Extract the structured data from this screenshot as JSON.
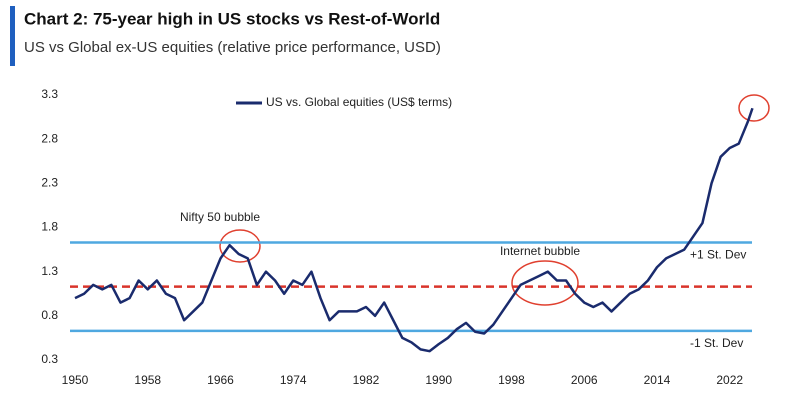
{
  "chart_data": {
    "type": "line",
    "title": "Chart 2: 75-year high in US stocks vs Rest-of-World",
    "subtitle": "US vs Global ex-US equities (relative price performance, USD)",
    "x": [
      1950,
      1951,
      1952,
      1953,
      1954,
      1955,
      1956,
      1957,
      1958,
      1959,
      1960,
      1961,
      1962,
      1963,
      1964,
      1965,
      1966,
      1967,
      1968,
      1969,
      1970,
      1971,
      1972,
      1973,
      1974,
      1975,
      1976,
      1977,
      1978,
      1979,
      1980,
      1981,
      1982,
      1983,
      1984,
      1985,
      1986,
      1987,
      1988,
      1989,
      1990,
      1991,
      1992,
      1993,
      1994,
      1995,
      1996,
      1997,
      1998,
      1999,
      2000,
      2001,
      2002,
      2003,
      2004,
      2005,
      2006,
      2007,
      2008,
      2009,
      2010,
      2011,
      2012,
      2013,
      2014,
      2015,
      2016,
      2017,
      2018,
      2019,
      2020,
      2021,
      2022,
      2023,
      2024,
      2024.5
    ],
    "series": [
      {
        "name": "US vs. Global equities (US$ terms)",
        "color": "#1a2b6d",
        "values": [
          1.0,
          1.05,
          1.15,
          1.1,
          1.15,
          0.95,
          1.0,
          1.2,
          1.1,
          1.2,
          1.05,
          1.0,
          0.75,
          0.85,
          0.95,
          1.2,
          1.45,
          1.6,
          1.5,
          1.45,
          1.15,
          1.3,
          1.2,
          1.05,
          1.2,
          1.15,
          1.3,
          1.0,
          0.75,
          0.85,
          0.85,
          0.85,
          0.9,
          0.8,
          0.95,
          0.75,
          0.55,
          0.5,
          0.42,
          0.4,
          0.48,
          0.55,
          0.65,
          0.72,
          0.62,
          0.6,
          0.7,
          0.85,
          1.0,
          1.15,
          1.2,
          1.25,
          1.3,
          1.2,
          1.2,
          1.05,
          0.95,
          0.9,
          0.95,
          0.85,
          0.95,
          1.05,
          1.1,
          1.2,
          1.35,
          1.45,
          1.5,
          1.55,
          1.7,
          1.85,
          2.3,
          2.6,
          2.7,
          2.75,
          3.0,
          3.15
        ]
      }
    ],
    "reference_lines": [
      {
        "label": "+1 St. Dev",
        "value": 1.63,
        "color": "#4fa8e0"
      },
      {
        "value": 1.13,
        "color": "#d9342b",
        "dashed": true
      },
      {
        "label": "-1 St. Dev",
        "value": 0.63,
        "color": "#4fa8e0"
      }
    ],
    "annotations": [
      "Nifty 50 bubble",
      "Internet bubble"
    ],
    "xlim": [
      1950,
      2025
    ],
    "xticks": [
      1950,
      1958,
      1966,
      1974,
      1982,
      1990,
      1998,
      2006,
      2014,
      2022
    ],
    "ylim": [
      0.3,
      3.3
    ],
    "yticks": [
      0.3,
      0.8,
      1.3,
      1.8,
      2.3,
      2.8,
      3.3
    ],
    "legend": "top"
  }
}
